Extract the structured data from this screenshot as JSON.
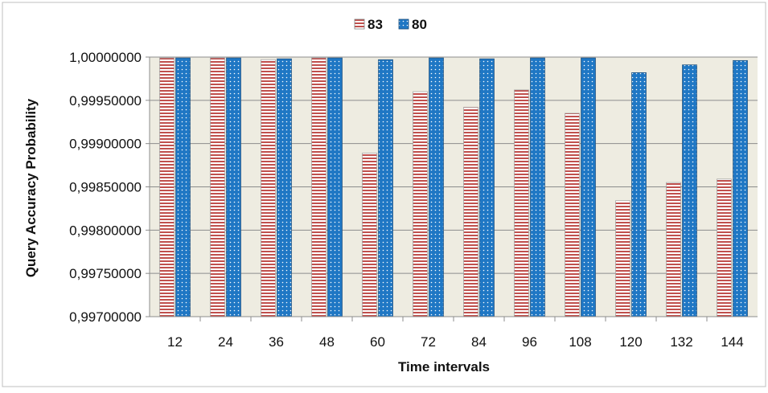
{
  "chart_data": {
    "type": "bar",
    "title": "",
    "xlabel": "Time intervals",
    "ylabel": "Query Accuracy Probability",
    "categories": [
      "12",
      "24",
      "36",
      "48",
      "60",
      "72",
      "84",
      "96",
      "108",
      "120",
      "132",
      "144"
    ],
    "series": [
      {
        "name": "83",
        "color": "#c0504d",
        "pattern": "horizontal-stripes",
        "values": [
          0.99999,
          0.99999,
          0.99997,
          0.99999,
          0.99889,
          0.9996,
          0.99942,
          0.99962,
          0.99935,
          0.99834,
          0.99855,
          0.99859
        ]
      },
      {
        "name": "80",
        "color": "#1f77c4",
        "pattern": "dots",
        "values": [
          0.99999,
          0.99999,
          0.99998,
          0.99999,
          0.99997,
          0.99999,
          0.99998,
          0.99999,
          0.99999,
          0.99982,
          0.99991,
          0.99996
        ]
      }
    ],
    "ylim": [
      0.997,
      1.0
    ],
    "yticks": [
      "0,99700000",
      "0,99750000",
      "0,99800000",
      "0,99850000",
      "0,99900000",
      "0,99950000",
      "1,00000000"
    ],
    "ytick_values": [
      0.997,
      0.9975,
      0.998,
      0.9985,
      0.999,
      0.9995,
      1.0
    ],
    "grid": true,
    "legend": "top-center",
    "plot_background": "#eeece1"
  }
}
